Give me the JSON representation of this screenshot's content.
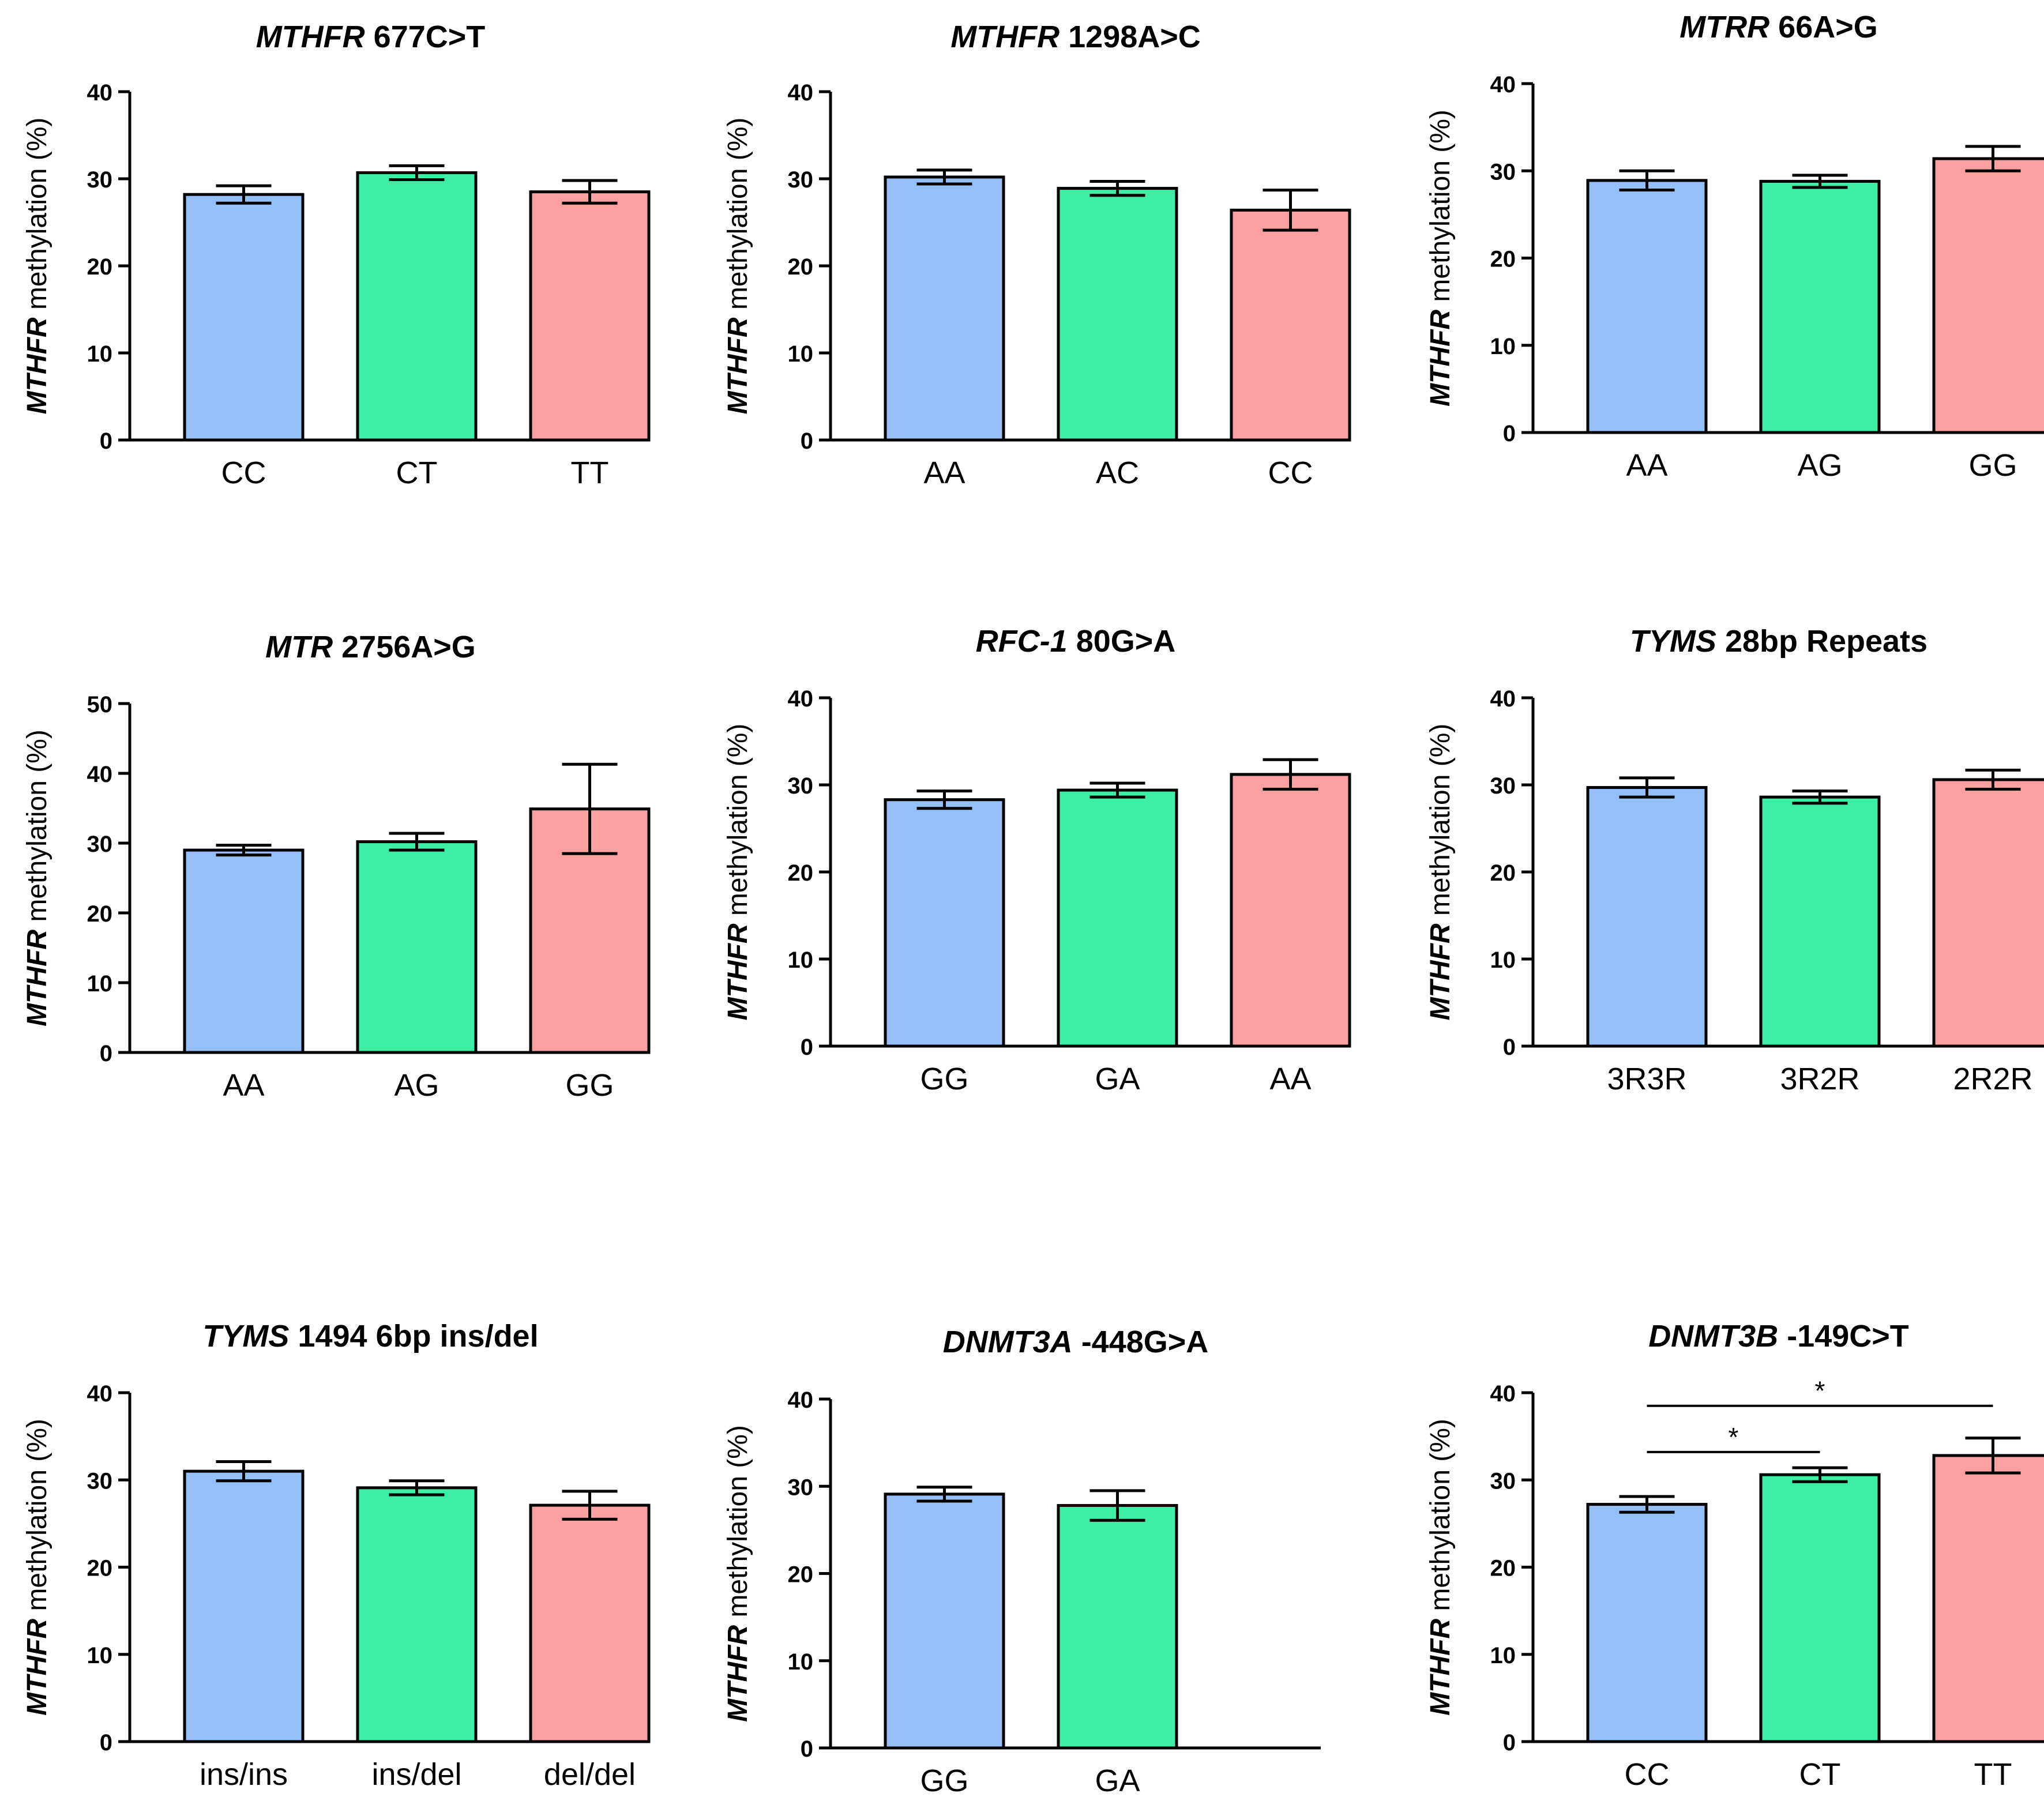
{
  "colors": {
    "bar1": "#94bff8",
    "bar2": "#3eeea4",
    "bar3": "#fba0a0",
    "stroke": "#000000"
  },
  "ylabel": {
    "gene": "MTHFR",
    "rest": " methylation (%)"
  },
  "chart_data": [
    {
      "type": "bar",
      "title": {
        "gene": "MTHFR",
        "rest": " 677C>T"
      },
      "categories": [
        "CC",
        "CT",
        "TT"
      ],
      "values": [
        28.2,
        30.7,
        28.5
      ],
      "errors": [
        1.0,
        0.8,
        1.3
      ],
      "ylim": [
        0,
        40
      ],
      "yticks": [
        "0",
        "10",
        "20",
        "30",
        "40"
      ],
      "xlabel": "",
      "ylabel": "MTHFR methylation (%)"
    },
    {
      "type": "bar",
      "title": {
        "gene": "MTHFR",
        "rest": " 1298A>C"
      },
      "categories": [
        "AA",
        "AC",
        "CC"
      ],
      "values": [
        30.2,
        28.9,
        26.4
      ],
      "errors": [
        0.8,
        0.8,
        2.3
      ],
      "ylim": [
        0,
        40
      ],
      "yticks": [
        "0",
        "10",
        "20",
        "30",
        "40"
      ],
      "xlabel": "",
      "ylabel": "MTHFR methylation (%)"
    },
    {
      "type": "bar",
      "title": {
        "gene": "MTRR",
        "rest": " 66A>G"
      },
      "categories": [
        "AA",
        "AG",
        "GG"
      ],
      "values": [
        28.9,
        28.8,
        31.4
      ],
      "errors": [
        1.1,
        0.7,
        1.4
      ],
      "ylim": [
        0,
        40
      ],
      "yticks": [
        "0",
        "10",
        "20",
        "30",
        "40"
      ],
      "xlabel": "",
      "ylabel": "MTHFR methylation (%)"
    },
    {
      "type": "bar",
      "title": {
        "gene": "MTR",
        "rest": " 2756A>G"
      },
      "categories": [
        "AA",
        "AG",
        "GG"
      ],
      "values": [
        29.0,
        30.2,
        34.9
      ],
      "errors": [
        0.7,
        1.2,
        6.4
      ],
      "ylim": [
        0,
        50
      ],
      "yticks": [
        "0",
        "10",
        "20",
        "30",
        "40",
        "50"
      ],
      "xlabel": "",
      "ylabel": "MTHFR methylation (%)"
    },
    {
      "type": "bar",
      "title": {
        "gene": "RFC-1",
        "rest": " 80G>A"
      },
      "categories": [
        "GG",
        "GA",
        "AA"
      ],
      "values": [
        28.3,
        29.4,
        31.2
      ],
      "errors": [
        1.0,
        0.8,
        1.7
      ],
      "ylim": [
        0,
        40
      ],
      "yticks": [
        "0",
        "10",
        "20",
        "30",
        "40"
      ],
      "xlabel": "",
      "ylabel": "MTHFR methylation (%)"
    },
    {
      "type": "bar",
      "title": {
        "gene": "TYMS",
        "rest": " 28bp Repeats"
      },
      "categories": [
        "3R3R",
        "3R2R",
        "2R2R"
      ],
      "values": [
        29.7,
        28.6,
        30.6
      ],
      "errors": [
        1.1,
        0.7,
        1.1
      ],
      "ylim": [
        0,
        40
      ],
      "yticks": [
        "0",
        "10",
        "20",
        "30",
        "40"
      ],
      "xlabel": "",
      "ylabel": "MTHFR methylation (%)"
    },
    {
      "type": "bar",
      "title": {
        "gene": "TYMS",
        "rest": " 1494 6bp ins/del"
      },
      "categories": [
        "ins/ins",
        "ins/del",
        "del/del"
      ],
      "values": [
        31.0,
        29.1,
        27.1
      ],
      "errors": [
        1.1,
        0.8,
        1.6
      ],
      "ylim": [
        0,
        40
      ],
      "yticks": [
        "0",
        "10",
        "20",
        "30",
        "40"
      ],
      "xlabel": "",
      "ylabel": "MTHFR methylation (%)"
    },
    {
      "type": "bar",
      "title": {
        "gene": "DNMT3A",
        "rest": " -448G>A"
      },
      "categories": [
        "GG",
        "GA"
      ],
      "values": [
        29.1,
        27.8
      ],
      "errors": [
        0.8,
        1.7
      ],
      "ylim": [
        0,
        40
      ],
      "yticks": [
        "0",
        "10",
        "20",
        "30",
        "40"
      ],
      "xlabel": "",
      "ylabel": "MTHFR methylation (%)"
    },
    {
      "type": "bar",
      "title": {
        "gene": "DNMT3B",
        "rest": " -149C>T"
      },
      "categories": [
        "CC",
        "CT",
        "TT"
      ],
      "values": [
        27.2,
        30.6,
        32.8
      ],
      "errors": [
        0.9,
        0.8,
        2.0
      ],
      "ylim": [
        0,
        40
      ],
      "yticks": [
        "0",
        "10",
        "20",
        "30",
        "40"
      ],
      "xlabel": "",
      "ylabel": "MTHFR methylation (%)",
      "significance": [
        {
          "from": 0,
          "to": 1,
          "label": "*"
        },
        {
          "from": 0,
          "to": 2,
          "label": "*"
        }
      ]
    }
  ]
}
